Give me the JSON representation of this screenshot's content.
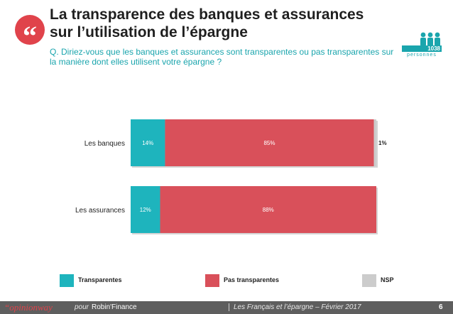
{
  "header": {
    "quote_glyph": "“",
    "title": "La transparence des banques et assurances sur l’utilisation de l’épargne",
    "question": "Q. Diriez-vous que les banques et assurances sont transparentes ou pas transparentes sur la manière dont elles utilisent votre épargne ?",
    "sample_count": "1038",
    "sample_caption": "personnes",
    "people_icon": "people-group-icon"
  },
  "colors": {
    "accent": "#e0434b",
    "teal": "#1aa5ad",
    "transparentes": "#1eb4bd",
    "pas_transparentes": "#d9505a",
    "nsp": "#cccccc"
  },
  "chart_data": {
    "type": "bar",
    "orientation": "horizontal",
    "stacked": true,
    "categories": [
      "Les banques",
      "Les assurances"
    ],
    "series": [
      {
        "name": "Transparentes",
        "values": [
          14,
          12
        ],
        "labels": [
          "14%",
          "12%"
        ],
        "color": "#1eb4bd"
      },
      {
        "name": "Pas transparentes",
        "values": [
          85,
          88
        ],
        "labels": [
          "85%",
          "88%"
        ],
        "color": "#d9505a"
      },
      {
        "name": "NSP",
        "values": [
          1,
          0
        ],
        "labels": [
          "1%",
          ""
        ],
        "color": "#cccccc"
      }
    ],
    "xlim": [
      0,
      100
    ],
    "grid": false,
    "legend_position": "bottom"
  },
  "footer": {
    "brand": "“opinionway",
    "pour": "pour",
    "partner": "Robin'Finance",
    "source": "Les Français et l’épargne – Février 2017",
    "page": "6"
  }
}
